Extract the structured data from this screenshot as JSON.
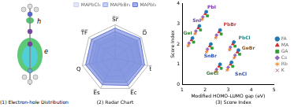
{
  "diagram": {
    "title": "(1) Electron-hole Distribution",
    "labels": {
      "hole": "h",
      "electron": "e"
    }
  },
  "chart_data": [
    {
      "type": "radar",
      "title": "(2) Radar Chart",
      "categories": [
        "S̅r̅",
        "D̅",
        "t̅",
        "E̅c",
        "E̅s",
        "Q",
        "T̅F̅"
      ],
      "series": [
        {
          "name": "MAPbCl₃",
          "color": "#c8d2f2",
          "values": [
            0.7,
            0.75,
            0.75,
            0.7,
            0.7,
            0.7,
            0.7
          ]
        },
        {
          "name": "MAPbBr₃",
          "color": "#98a9e8",
          "values": [
            0.8,
            0.85,
            0.82,
            0.8,
            0.78,
            0.8,
            0.8
          ]
        },
        {
          "name": "MAPbI₃",
          "color": "#5f74d6",
          "values": [
            0.9,
            0.95,
            0.9,
            0.9,
            0.88,
            0.9,
            0.9
          ]
        }
      ],
      "ylim": [
        0,
        1
      ],
      "yticks": [
        0.2,
        0.4,
        0.6,
        0.8,
        1.0
      ],
      "tick_labels": false,
      "grid": true,
      "legend": "top"
    },
    {
      "type": "scatter",
      "title": "(3) Score Index",
      "x_label": "Modified HOMO-LUMO gap (eV)",
      "y_label": "Score Index",
      "series": [
        {
          "name": "FA",
          "color": "#1f77b4",
          "marker": "circle",
          "x": [
            1.45,
            1.75,
            2.05,
            2.25,
            2.65,
            2.65,
            3.15,
            3.45,
            3.25
          ],
          "values": [
            2.3,
            2.9,
            3.6,
            2.0,
            2.7,
            1.0,
            1.1,
            1.7,
            2.1
          ]
        },
        {
          "name": "MA",
          "color": "#d62728",
          "marker": "triangle",
          "x": [
            1.4,
            1.7,
            2.0,
            2.2,
            2.6,
            2.6,
            3.1,
            3.4,
            3.2
          ],
          "values": [
            2.2,
            2.8,
            3.5,
            1.9,
            2.6,
            0.9,
            1.0,
            1.6,
            2.0
          ]
        },
        {
          "name": "GA",
          "color": "#2ca02c",
          "marker": "square",
          "x": [
            1.5,
            1.8,
            2.1,
            2.3,
            2.7,
            2.7,
            3.2,
            3.5,
            3.3
          ],
          "values": [
            2.1,
            2.7,
            3.4,
            1.8,
            2.5,
            0.8,
            0.9,
            1.5,
            1.9
          ]
        },
        {
          "name": "Cs",
          "color": "#9467bd",
          "marker": "diamond",
          "x": [
            1.3,
            1.6,
            1.9,
            2.1,
            2.5,
            2.5,
            3.0,
            3.3,
            3.1
          ],
          "values": [
            2.05,
            2.65,
            3.35,
            1.75,
            2.45,
            0.75,
            0.85,
            1.45,
            1.85
          ]
        },
        {
          "name": "Rb",
          "color": "#ff7f0e",
          "marker": "star",
          "x": [
            1.28,
            1.58,
            1.88,
            2.08,
            2.48,
            2.48,
            2.98,
            3.28,
            3.08
          ],
          "values": [
            1.95,
            2.55,
            3.25,
            1.65,
            2.35,
            0.65,
            0.75,
            1.35,
            1.75
          ]
        },
        {
          "name": "K",
          "color": "#8c564b",
          "marker": "cross",
          "x": [
            1.25,
            1.55,
            1.85,
            2.05,
            2.45,
            2.45,
            2.95,
            3.25,
            3.05
          ],
          "values": [
            1.9,
            2.5,
            3.2,
            1.6,
            2.3,
            0.6,
            0.7,
            1.3,
            1.7
          ]
        }
      ],
      "annotations": [
        {
          "text": "GeI",
          "x": 1.05,
          "y": 2.55,
          "color": "#3a7d3a"
        },
        {
          "text": "SnI",
          "x": 1.45,
          "y": 3.15,
          "color": "#6a3dbd"
        },
        {
          "text": "PbI",
          "x": 2.1,
          "y": 3.8,
          "color": "#7b2fa8"
        },
        {
          "text": "PbBr",
          "x": 2.8,
          "y": 2.95,
          "color": "#c43a3a"
        },
        {
          "text": "SnBr",
          "x": 1.95,
          "y": 1.4,
          "color": "#2f4fb0"
        },
        {
          "text": "PbCl",
          "x": 3.45,
          "y": 2.3,
          "color": "#2b8a8a"
        },
        {
          "text": "GeBr",
          "x": 3.6,
          "y": 1.8,
          "color": "#8a5a2b"
        },
        {
          "text": "SnCl",
          "x": 3.3,
          "y": 0.5,
          "color": "#2f4fb0"
        },
        {
          "text": "GeCl",
          "x": 2.05,
          "y": 0.55,
          "color": "#3a7d3a"
        }
      ],
      "xlim": [
        1,
        5
      ],
      "xticks": [
        1,
        2,
        3,
        4,
        5
      ],
      "ylim": [
        0,
        4
      ],
      "yticks": [
        0,
        1,
        2,
        3,
        4
      ],
      "grid": false,
      "legend": "right"
    }
  ]
}
